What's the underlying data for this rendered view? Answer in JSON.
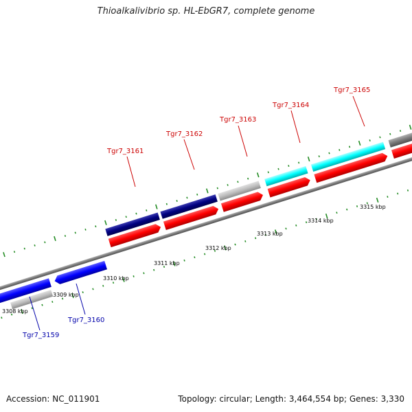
{
  "header": {
    "title": "Thioalkalivibrio sp. HL-EbGR7, complete genome"
  },
  "footer": {
    "accession": "Accession: NC_011901",
    "summary": "Topology: circular; Length: 3,464,554 bp; Genes: 3,330"
  },
  "map": {
    "tick_labels": [
      "3308 kbp",
      "3309 kbp",
      "3310 kbp",
      "3311 kbp",
      "3312 kbp",
      "3313 kbp",
      "3314 kbp",
      "3315 kbp"
    ],
    "upper_genes": [
      {
        "label": "Tgr7_3161",
        "color": "#cc0000"
      },
      {
        "label": "Tgr7_3162",
        "color": "#cc0000"
      },
      {
        "label": "Tgr7_3163",
        "color": "#cc0000"
      },
      {
        "label": "Tgr7_3164",
        "color": "#cc0000"
      },
      {
        "label": "Tgr7_3165",
        "color": "#cc0000"
      }
    ],
    "lower_genes": [
      {
        "label": "Tgr7_3159",
        "color": "#0000aa"
      },
      {
        "label": "Tgr7_3160",
        "color": "#0000aa"
      }
    ],
    "feature_colors": {
      "cds_forward": "#ff0000",
      "gene_navy": "#000080",
      "gene_blue": "#0000ff",
      "gene_cyan": "#00ffff",
      "gene_gray": "#bdbdbd",
      "backbone": "#808080",
      "tick_green": "#228b22"
    }
  }
}
